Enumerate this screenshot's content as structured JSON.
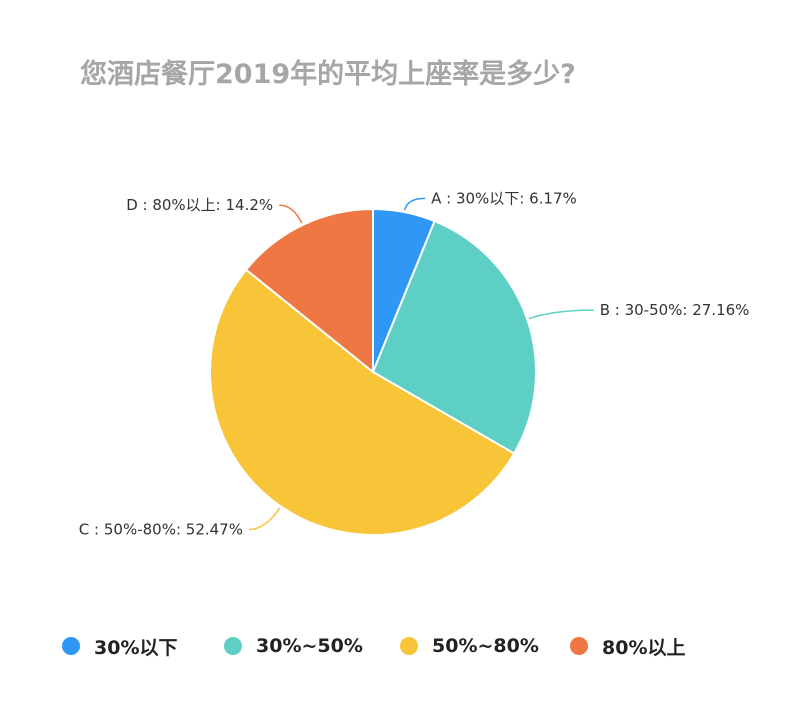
{
  "chart_data": {
    "type": "pie",
    "title": "您酒店餐厅2019年的平均上座率是多少?",
    "slices": [
      {
        "key": "A",
        "name": "30%以下",
        "label": "A : 30%以下: 6.17%",
        "value": 6.17,
        "color": "#2f97f5"
      },
      {
        "key": "B",
        "name": "30%~50%",
        "label": "B : 30-50%: 27.16%",
        "value": 27.16,
        "color": "#5ecfc5"
      },
      {
        "key": "C",
        "name": "50%~80%",
        "label": "C : 50%-80%: 52.47%",
        "value": 52.47,
        "color": "#f8c438"
      },
      {
        "key": "D",
        "name": "80%以上",
        "label": "D : 80%以上: 14.2%",
        "value": 14.2,
        "color": "#ee7743"
      }
    ],
    "legend_position": "bottom"
  }
}
